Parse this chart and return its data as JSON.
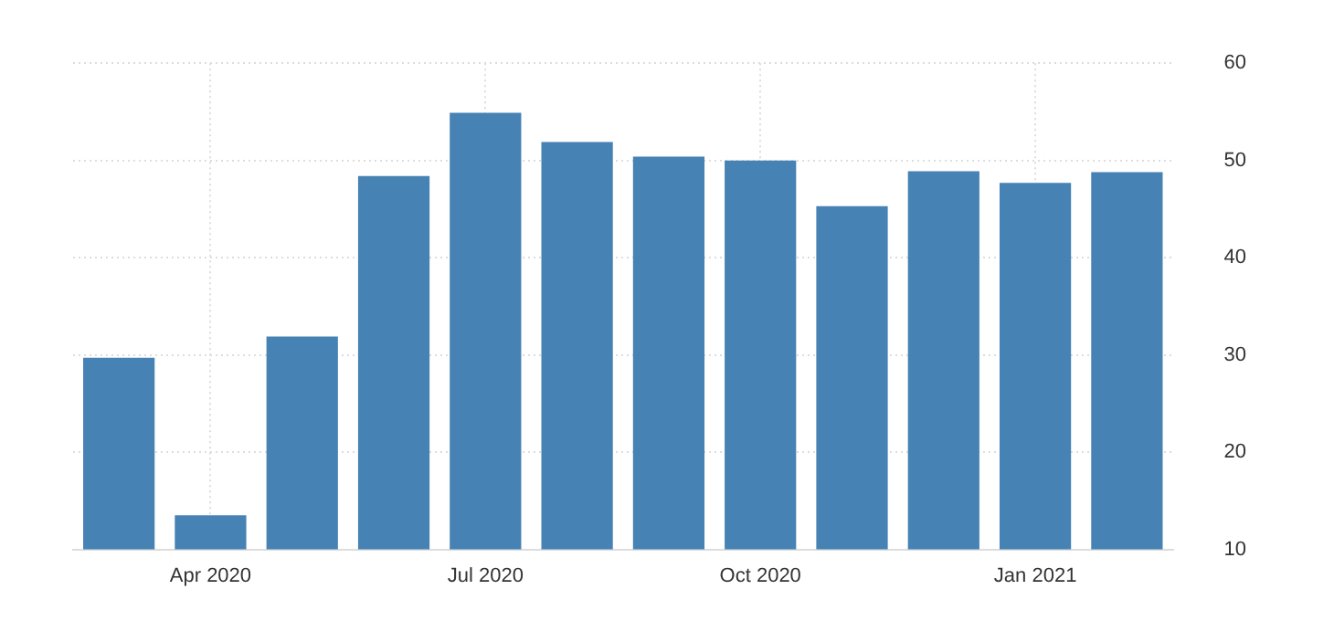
{
  "chart_data": {
    "type": "bar",
    "categories": [
      null,
      "Apr 2020",
      null,
      null,
      "Jul 2020",
      null,
      null,
      "Oct 2020",
      null,
      null,
      "Jan 2021",
      null
    ],
    "values": [
      29.7,
      13.5,
      31.9,
      48.4,
      54.9,
      51.9,
      50.4,
      50.0,
      45.3,
      48.9,
      47.7,
      48.8
    ],
    "color": "#4682b4",
    "ylim": [
      10,
      60
    ],
    "yticks": [
      10,
      20,
      30,
      40,
      50,
      60
    ],
    "grid": true,
    "legend": false
  }
}
